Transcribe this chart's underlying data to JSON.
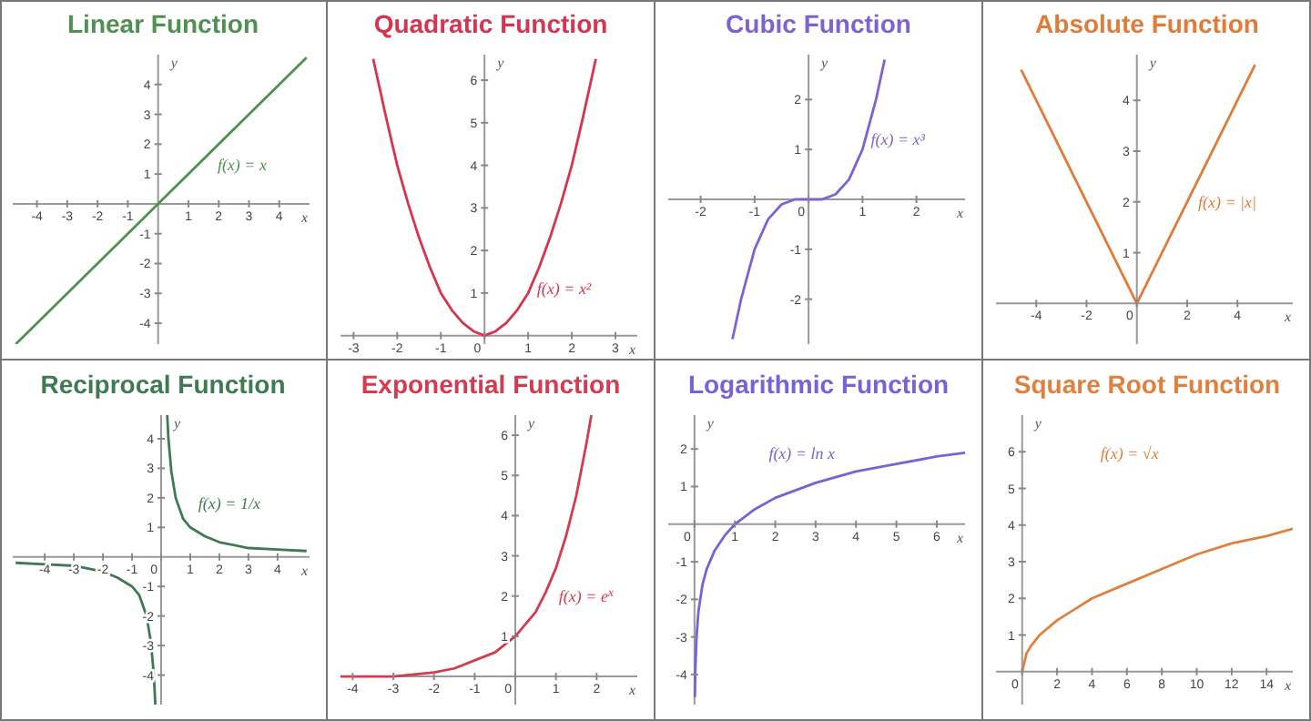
{
  "chart_data": [
    {
      "type": "line",
      "title": "Linear Function",
      "xlabel": "x",
      "ylabel": "y",
      "marker": "none",
      "xlim": [
        -4.8,
        5
      ],
      "xticks": [
        -4,
        -3,
        -2,
        -1,
        1,
        2,
        3,
        4
      ],
      "ylim": [
        -4.7,
        5
      ],
      "yticks": [
        -4,
        -3,
        -2,
        -1,
        1,
        2,
        3,
        4
      ],
      "x": [
        -4.7,
        4.9
      ],
      "series": [
        {
          "color": "#4e9150",
          "values": [
            -4.7,
            4.9
          ]
        }
      ],
      "annotations": [
        {
          "text": "f(x) = x",
          "x": 1.6,
          "y": 1.3
        }
      ]
    },
    {
      "type": "line",
      "title": "Quadratic Function",
      "xlabel": "x",
      "ylabel": "y",
      "marker": "none",
      "xlim": [
        -3.3,
        3.5
      ],
      "xticks": [
        -3,
        -2,
        -1,
        0,
        1,
        2,
        3
      ],
      "ylim": [
        -0.2,
        6.6
      ],
      "yticks": [
        1,
        2,
        3,
        4,
        5,
        6
      ],
      "x": [
        -2.55,
        -2.25,
        -2,
        -1.75,
        -1.5,
        -1.25,
        -1,
        -0.75,
        -0.5,
        -0.25,
        0,
        0.25,
        0.5,
        0.75,
        1,
        1.25,
        1.5,
        1.75,
        2,
        2.25,
        2.55
      ],
      "series": [
        {
          "color": "#d6344f",
          "values": [
            6.5,
            5.1,
            4,
            3.1,
            2.3,
            1.6,
            1,
            0.6,
            0.3,
            0.1,
            0,
            0.1,
            0.3,
            0.6,
            1,
            1.6,
            2.3,
            3.1,
            4,
            5.1,
            6.5
          ]
        }
      ],
      "annotations": [
        {
          "text": "f(x) = x²",
          "x": 0.95,
          "y": 1.1
        }
      ]
    },
    {
      "type": "line",
      "title": "Cubic Function",
      "xlabel": "x",
      "ylabel": "y",
      "marker": "none",
      "xlim": [
        -2.6,
        2.9
      ],
      "xticks": [
        -2,
        -1,
        0,
        1,
        2
      ],
      "ylim": [
        -2.9,
        2.9
      ],
      "yticks": [
        -2,
        -1,
        1,
        2
      ],
      "x": [
        -1.41,
        -1.25,
        -1,
        -0.75,
        -0.5,
        -0.25,
        0,
        0.25,
        0.5,
        0.75,
        1,
        1.25,
        1.41
      ],
      "series": [
        {
          "color": "#7f62d2",
          "values": [
            -2.8,
            -2,
            -1,
            -0.4,
            -0.1,
            0,
            0,
            0,
            0.1,
            0.4,
            1,
            2,
            2.8
          ]
        }
      ],
      "annotations": [
        {
          "text": "f(x) = x³",
          "x": 0.95,
          "y": 1.2
        }
      ]
    },
    {
      "type": "line",
      "title": "Absolute Function",
      "xlabel": "x",
      "ylabel": "y",
      "marker": "none",
      "xlim": [
        -5.6,
        6.2
      ],
      "xticks": [
        -4,
        -2,
        0,
        2,
        4
      ],
      "ylim": [
        -0.8,
        4.9
      ],
      "yticks": [
        1,
        2,
        3,
        4
      ],
      "x": [
        -4.6,
        -2,
        0,
        2,
        4.7
      ],
      "series": [
        {
          "color": "#e07b39",
          "values": [
            4.6,
            2,
            0,
            2,
            4.7
          ]
        }
      ],
      "annotations": [
        {
          "text": "f(x) = |x|",
          "x": 2,
          "y": 2
        }
      ]
    },
    {
      "type": "line",
      "title": "Reciprocal Function",
      "xlabel": "x",
      "ylabel": "y",
      "marker": "none",
      "xlim": [
        -5.1,
        5.1
      ],
      "xticks": [
        -4,
        -3,
        -2,
        -1,
        0,
        1,
        2,
        3,
        4
      ],
      "ylim": [
        -5,
        4.8
      ],
      "yticks": [
        -4,
        -3,
        -2,
        -1,
        1,
        2,
        3,
        4
      ],
      "x": [
        -5,
        -4,
        -3,
        -2,
        -1.5,
        -1,
        -0.75,
        -0.5,
        -0.35,
        -0.25,
        -0.2,
        0,
        0.21,
        0.25,
        0.35,
        0.5,
        0.75,
        1,
        1.5,
        2,
        3,
        4,
        5
      ],
      "series": [
        {
          "color": "#3f7a52",
          "values": [
            -0.2,
            -0.25,
            -0.3,
            -0.5,
            -0.7,
            -1,
            -1.3,
            -2,
            -2.9,
            -4,
            -5,
            null,
            4.8,
            4,
            2.9,
            2,
            1.3,
            1,
            0.7,
            0.5,
            0.3,
            0.25,
            0.2
          ]
        }
      ],
      "annotations": [
        {
          "text": "f(x) = 1/x",
          "x": 0.9,
          "y": 1.8
        }
      ]
    },
    {
      "type": "line",
      "title": "Exponential Function",
      "xlabel": "x",
      "ylabel": "y",
      "marker": "none",
      "xlim": [
        -4.3,
        3
      ],
      "xticks": [
        -4,
        -3,
        -2,
        -1,
        0,
        1,
        2
      ],
      "ylim": [
        -0.7,
        6.5
      ],
      "yticks": [
        1,
        2,
        3,
        4,
        5,
        6
      ],
      "x": [
        -4.3,
        -3,
        -2,
        -1.5,
        -1,
        -0.5,
        0,
        0.25,
        0.5,
        0.75,
        1,
        1.25,
        1.5,
        1.75,
        1.87
      ],
      "series": [
        {
          "color": "#d43a50",
          "values": [
            0,
            0,
            0.1,
            0.2,
            0.4,
            0.6,
            1,
            1.3,
            1.6,
            2.1,
            2.7,
            3.5,
            4.5,
            5.8,
            6.5
          ]
        }
      ],
      "annotations": [
        {
          "text": "f(x) = e$^{x}$",
          "x": 0.8,
          "y": 2
        }
      ]
    },
    {
      "type": "line",
      "title": "Logarithmic Function",
      "xlabel": "x",
      "ylabel": "y",
      "marker": "none",
      "xlim": [
        -0.65,
        6.7
      ],
      "xticks": [
        0,
        1,
        2,
        3,
        4,
        5,
        6
      ],
      "ylim": [
        -4.8,
        2.9
      ],
      "yticks": [
        -4,
        -3,
        -2,
        -1,
        1,
        2
      ],
      "x": [
        0.01,
        0.02,
        0.05,
        0.1,
        0.2,
        0.3,
        0.5,
        0.75,
        1,
        1.5,
        2,
        3,
        4,
        5,
        6,
        6.7
      ],
      "series": [
        {
          "color": "#7464d6",
          "values": [
            -4.6,
            -3.9,
            -3,
            -2.3,
            -1.6,
            -1.2,
            -0.7,
            -0.3,
            0,
            0.4,
            0.7,
            1.1,
            1.4,
            1.6,
            1.8,
            1.9
          ]
        }
      ],
      "annotations": [
        "f(x) = ln x"
      ]
    },
    {
      "type": "line",
      "title": "Square Root Function",
      "xlabel": "x",
      "ylabel": "y",
      "marker": "none",
      "xlim": [
        -1.5,
        15.5
      ],
      "xticks": [
        0,
        2,
        4,
        6,
        8,
        10,
        12,
        14
      ],
      "ylim": [
        -0.9,
        7
      ],
      "yticks": [
        1,
        2,
        3,
        4,
        5,
        6
      ],
      "x": [
        0,
        0.25,
        0.5,
        1,
        2,
        3,
        4,
        6,
        8,
        10,
        12,
        14,
        15.5
      ],
      "series": [
        {
          "color": "#e0803f",
          "values": [
            0,
            0.5,
            0.7,
            1,
            1.4,
            1.7,
            2,
            2.4,
            2.8,
            3.2,
            3.5,
            3.7,
            3.9
          ]
        }
      ],
      "annotations": [
        "f(x) = √x"
      ]
    }
  ]
}
